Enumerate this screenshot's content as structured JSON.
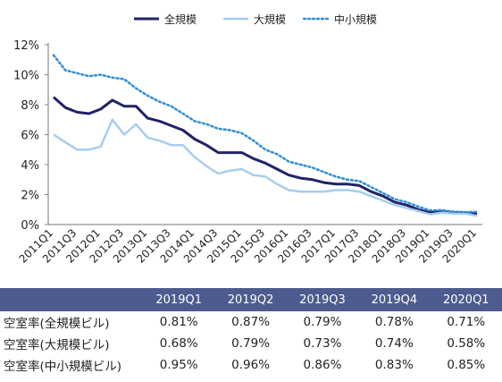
{
  "chart_data": {
    "type": "line",
    "x": [
      "2011Q1",
      "2011Q2",
      "2011Q3",
      "2011Q4",
      "2012Q1",
      "2012Q2",
      "2012Q3",
      "2012Q4",
      "2013Q1",
      "2013Q2",
      "2013Q3",
      "2013Q4",
      "2014Q1",
      "2014Q2",
      "2014Q3",
      "2014Q4",
      "2015Q1",
      "2015Q2",
      "2015Q3",
      "2015Q4",
      "2016Q1",
      "2016Q2",
      "2016Q3",
      "2016Q4",
      "2017Q1",
      "2017Q2",
      "2017Q3",
      "2017Q4",
      "2018Q1",
      "2018Q2",
      "2018Q3",
      "2018Q4",
      "2019Q1",
      "2019Q2",
      "2019Q3",
      "2019Q4",
      "2020Q1"
    ],
    "xtick_labels": [
      "2011Q1",
      "2011Q3",
      "2012Q1",
      "2012Q3",
      "2013Q1",
      "2013Q3",
      "2014Q1",
      "2014Q3",
      "2015Q1",
      "2015Q3",
      "2016Q1",
      "2016Q3",
      "2017Q1",
      "2017Q3",
      "2018Q1",
      "2018Q3",
      "2019Q1",
      "2019Q3",
      "2020Q1"
    ],
    "yticks": [
      "0%",
      "2%",
      "4%",
      "6%",
      "8%",
      "10%",
      "12%"
    ],
    "ylim": [
      0,
      12
    ],
    "legend_position": "top-center",
    "series": [
      {
        "name": "全規模",
        "style": "solid-thick",
        "color": "#1f2368",
        "values": [
          8.5,
          7.8,
          7.5,
          7.4,
          7.7,
          8.3,
          7.9,
          7.9,
          7.1,
          6.9,
          6.6,
          6.3,
          5.7,
          5.3,
          4.8,
          4.8,
          4.8,
          4.4,
          4.1,
          3.7,
          3.3,
          3.1,
          3.0,
          2.8,
          2.7,
          2.7,
          2.6,
          2.2,
          1.9,
          1.5,
          1.3,
          1.0,
          0.81,
          0.87,
          0.79,
          0.78,
          0.71
        ]
      },
      {
        "name": "大規模",
        "style": "solid",
        "color": "#a8cdef",
        "values": [
          6.0,
          5.5,
          5.0,
          5.0,
          5.2,
          7.0,
          6.0,
          6.7,
          5.8,
          5.6,
          5.3,
          5.3,
          4.5,
          3.9,
          3.4,
          3.6,
          3.7,
          3.3,
          3.2,
          2.7,
          2.3,
          2.2,
          2.2,
          2.2,
          2.3,
          2.3,
          2.2,
          1.9,
          1.6,
          1.3,
          1.1,
          0.9,
          0.68,
          0.79,
          0.73,
          0.74,
          0.58
        ]
      },
      {
        "name": "中小規模",
        "style": "dotted",
        "color": "#2f8fd6",
        "values": [
          11.3,
          10.3,
          10.1,
          9.9,
          10.0,
          9.8,
          9.7,
          9.1,
          8.6,
          8.2,
          7.9,
          7.4,
          6.9,
          6.7,
          6.4,
          6.3,
          6.1,
          5.6,
          5.0,
          4.7,
          4.2,
          4.0,
          3.8,
          3.5,
          3.2,
          3.0,
          2.9,
          2.5,
          2.1,
          1.7,
          1.5,
          1.2,
          0.95,
          0.96,
          0.86,
          0.83,
          0.85
        ]
      }
    ]
  },
  "table": {
    "headers": [
      "",
      "2019Q1",
      "2019Q2",
      "2019Q3",
      "2019Q4",
      "2020Q1"
    ],
    "rows": [
      {
        "label": "空室率(全規模ビル)",
        "values": [
          "0.81%",
          "0.87%",
          "0.79%",
          "0.78%",
          "0.71%"
        ]
      },
      {
        "label": "空室率(大規模ビル)",
        "values": [
          "0.68%",
          "0.79%",
          "0.73%",
          "0.74%",
          "0.58%"
        ]
      },
      {
        "label": "空室率(中小規模ビル)",
        "values": [
          "0.95%",
          "0.96%",
          "0.86%",
          "0.83%",
          "0.85%"
        ]
      }
    ]
  },
  "colors": {
    "header_bg": "#4e5b8e",
    "header_text": "#ffffff"
  }
}
